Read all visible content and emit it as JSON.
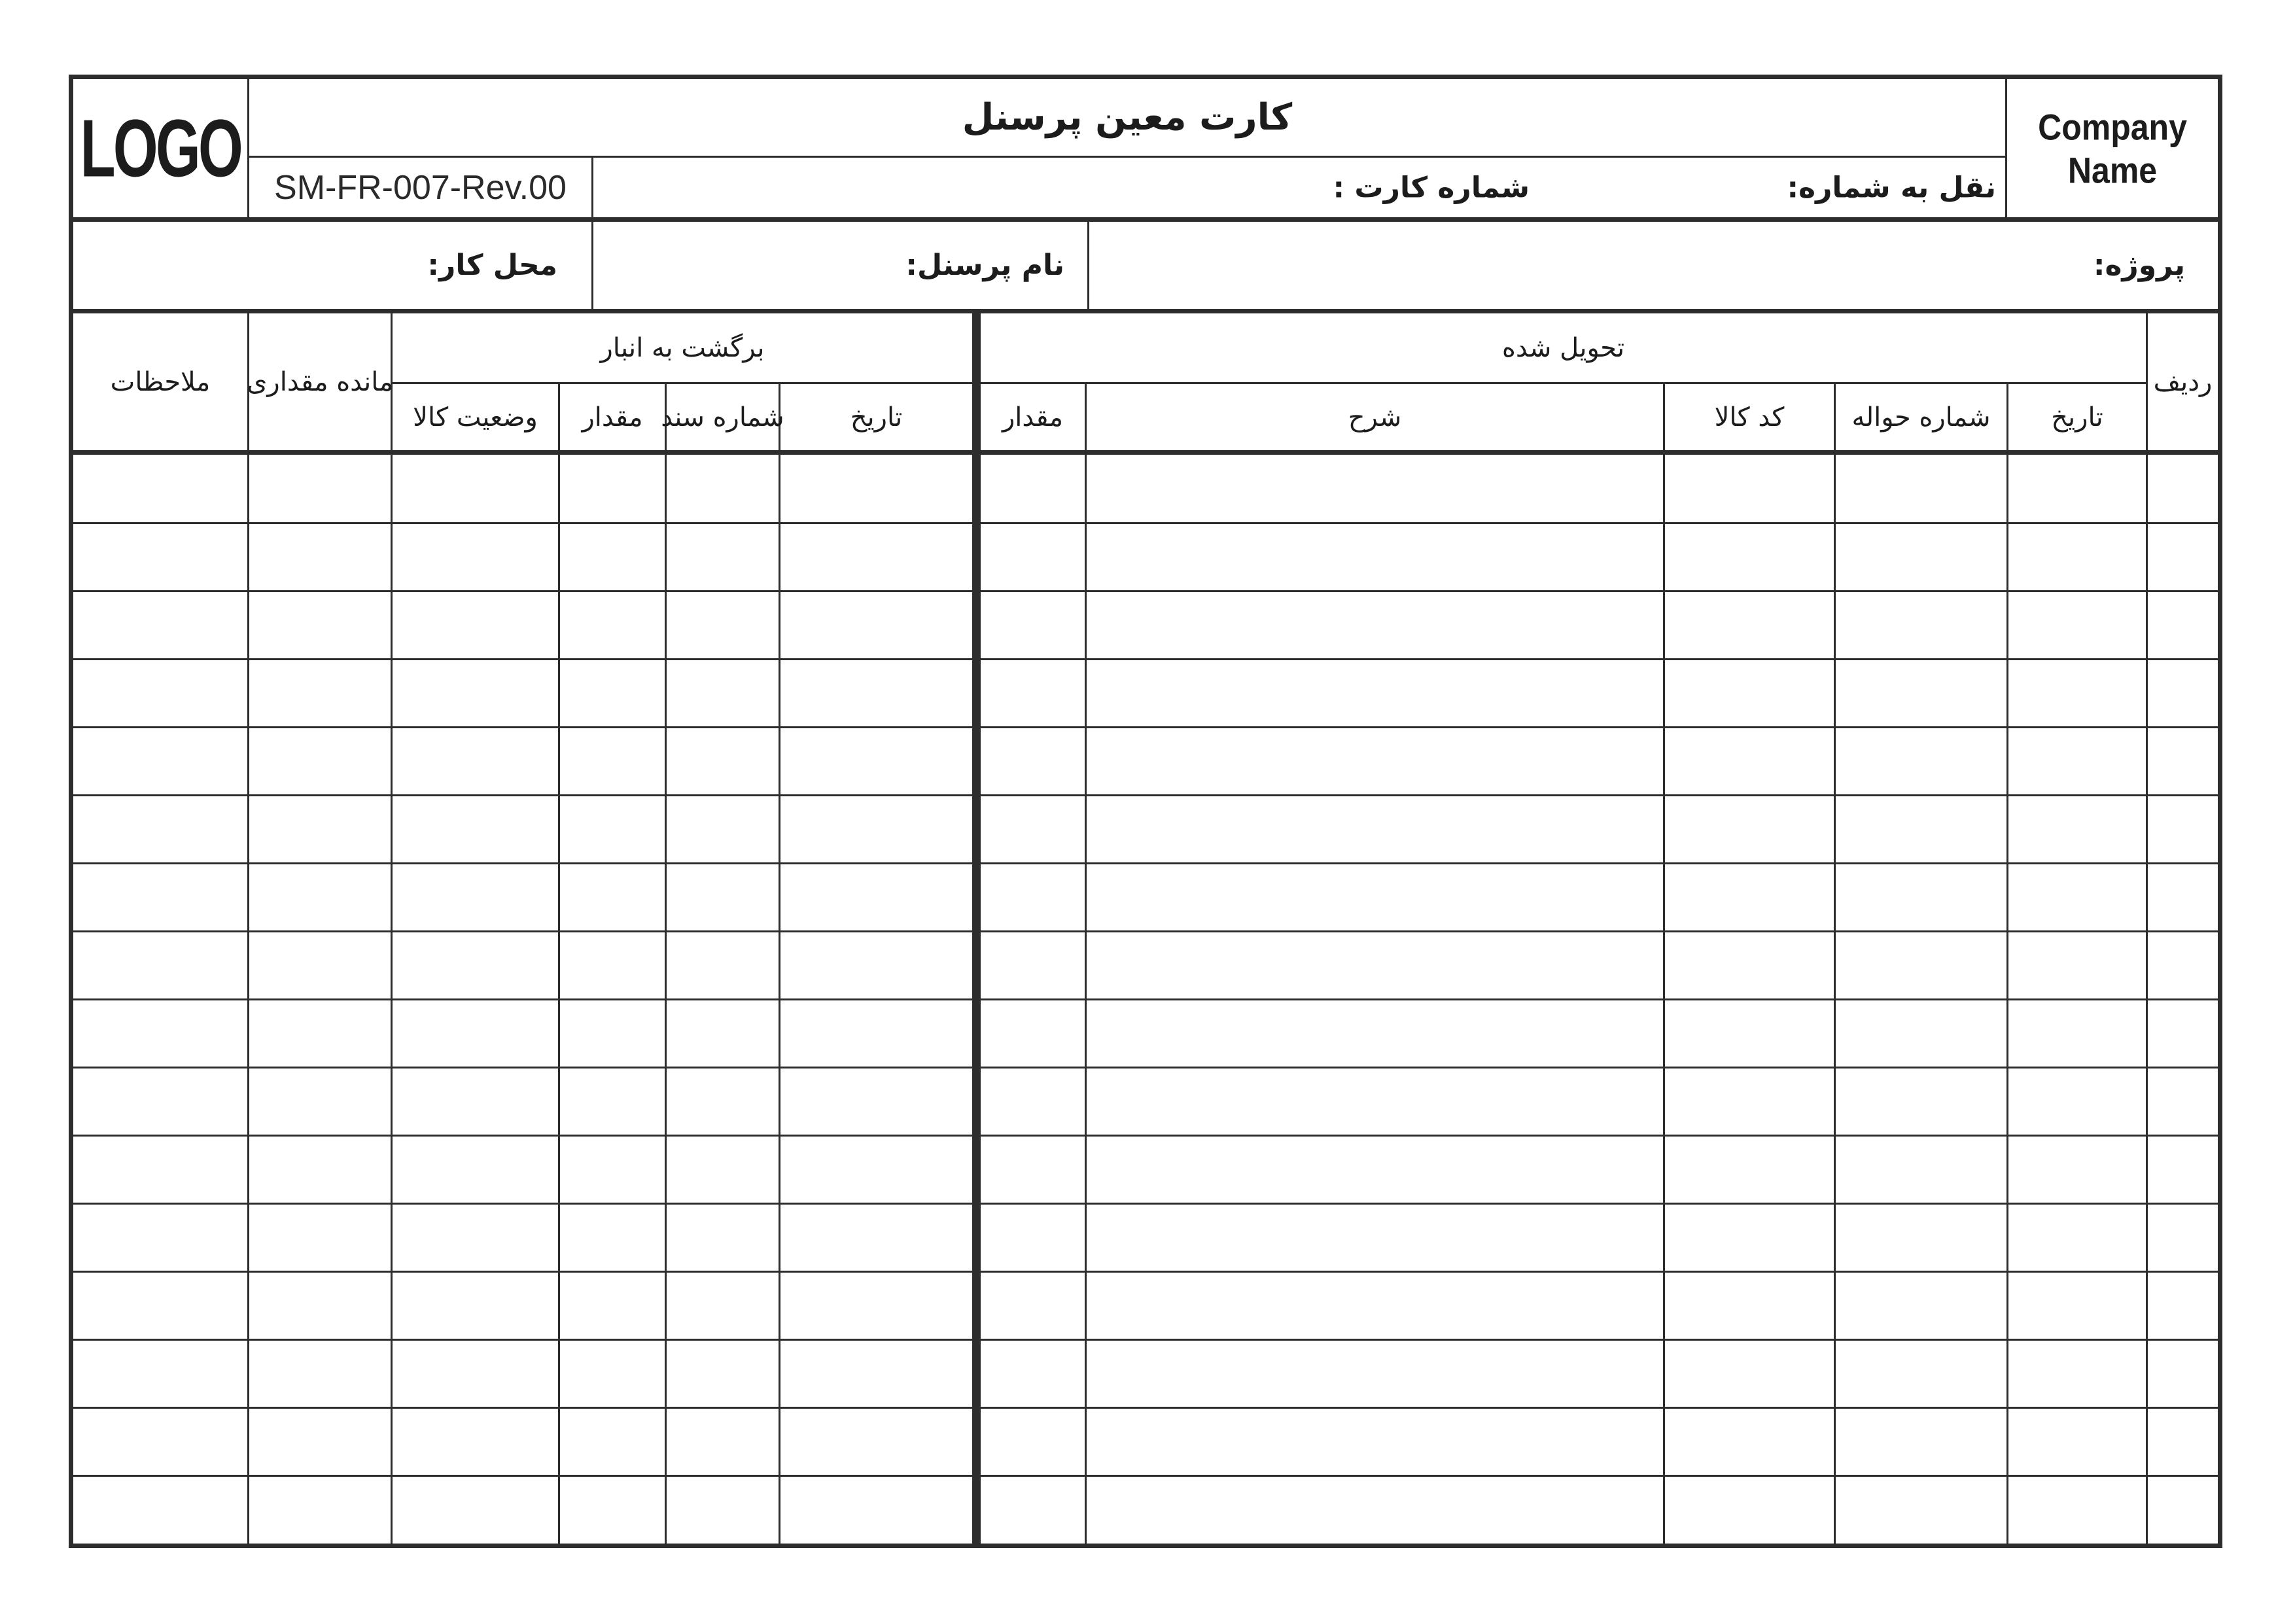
{
  "colors": {
    "line": "#2d2d2d",
    "text": "#1c1c1c",
    "background": "#ffffff"
  },
  "branding": {
    "logo_text": "LOGO",
    "company_name": "Company Name",
    "form_code": "SM-FR-007-Rev.00"
  },
  "header": {
    "title": "کارت معین پرسنل",
    "card_number_label": "شماره کارت :",
    "transfer_to_number_label": "نقل به شماره:",
    "workplace_label": "محل کار:",
    "personnel_name_label": "نام پرسنل:",
    "project_label": "پروژه:"
  },
  "table": {
    "row_index_header": "ردیف",
    "delivered_group": {
      "label": "تحویل شده",
      "date": "تاریخ",
      "remittance_number": "شماره حواله",
      "item_code": "کد کالا",
      "description": "شرح",
      "quantity": "مقدار"
    },
    "returned_group": {
      "label": "برگشت به انبار",
      "date": "تاریخ",
      "document_number": "شماره سند",
      "quantity": "مقدار",
      "item_condition": "وضعیت کالا"
    },
    "quantity_balance_header": "مانده مقداری",
    "remarks_header": "ملاحظات",
    "data_row_count": 16,
    "cells_empty": true
  }
}
